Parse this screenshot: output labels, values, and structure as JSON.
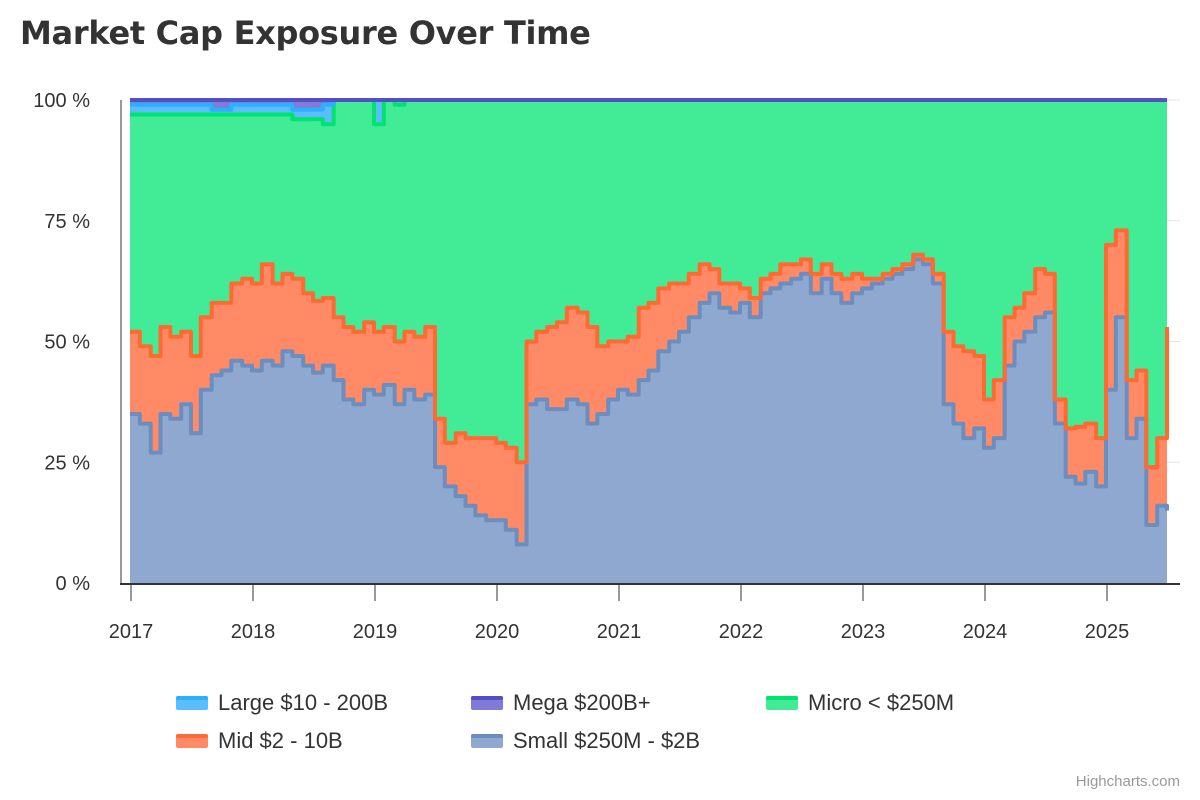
{
  "chart_data": {
    "type": "area",
    "stacking": "percent",
    "title": "Market Cap Exposure Over Time",
    "xlabel": "",
    "ylabel": "",
    "ylim": [
      0,
      100
    ],
    "y_ticks": [
      "0 %",
      "25 %",
      "50 %",
      "75 %",
      "100 %"
    ],
    "y_tick_values": [
      0,
      25,
      50,
      75,
      100
    ],
    "x_ticks": [
      "2017",
      "2018",
      "2019",
      "2020",
      "2021",
      "2022",
      "2023",
      "2024",
      "2025"
    ],
    "x_tick_values": [
      2017,
      2018,
      2019,
      2020,
      2021,
      2022,
      2023,
      2024,
      2025
    ],
    "xlim": [
      2017.0,
      2025.5
    ],
    "grid": true,
    "legend_position": "bottom",
    "x": [
      2017.0,
      2017.08,
      2017.17,
      2017.25,
      2017.33,
      2017.42,
      2017.5,
      2017.58,
      2017.67,
      2017.75,
      2017.83,
      2017.92,
      2018.0,
      2018.08,
      2018.17,
      2018.25,
      2018.33,
      2018.42,
      2018.5,
      2018.58,
      2018.67,
      2018.75,
      2018.83,
      2018.92,
      2019.0,
      2019.08,
      2019.17,
      2019.25,
      2019.33,
      2019.42,
      2019.5,
      2019.58,
      2019.67,
      2019.75,
      2019.83,
      2019.92,
      2020.0,
      2020.08,
      2020.17,
      2020.25,
      2020.33,
      2020.42,
      2020.5,
      2020.58,
      2020.67,
      2020.75,
      2020.83,
      2020.92,
      2021.0,
      2021.08,
      2021.17,
      2021.25,
      2021.33,
      2021.42,
      2021.5,
      2021.58,
      2021.67,
      2021.75,
      2021.83,
      2021.92,
      2022.0,
      2022.08,
      2022.17,
      2022.25,
      2022.33,
      2022.42,
      2022.5,
      2022.58,
      2022.67,
      2022.75,
      2022.83,
      2022.92,
      2023.0,
      2023.08,
      2023.17,
      2023.25,
      2023.33,
      2023.42,
      2023.5,
      2023.58,
      2023.67,
      2023.75,
      2023.83,
      2023.92,
      2024.0,
      2024.08,
      2024.17,
      2024.25,
      2024.33,
      2024.42,
      2024.5,
      2024.58,
      2024.67,
      2024.75,
      2024.83,
      2024.92,
      2025.0,
      2025.08,
      2025.17,
      2025.25,
      2025.33,
      2025.42,
      2025.5
    ],
    "series": [
      {
        "name": "Small $250M - $2B",
        "color": "#6c8ebf",
        "fill": "#8ea8cf",
        "values": [
          35,
          33,
          27,
          35,
          34,
          37,
          31,
          40,
          43,
          44,
          46,
          45,
          44,
          46,
          45,
          48,
          47,
          45,
          44,
          45,
          42,
          38,
          37,
          40,
          39,
          41,
          37,
          40,
          38,
          39,
          24,
          20,
          18,
          16,
          14,
          13,
          13,
          11,
          8,
          37,
          38,
          36,
          36,
          38,
          37,
          33,
          35,
          38,
          40,
          39,
          42,
          44,
          48,
          50,
          52,
          55,
          58,
          60,
          57,
          56,
          58,
          55,
          60,
          61,
          62,
          63,
          64,
          60,
          63,
          60,
          58,
          60,
          61,
          62,
          63,
          64,
          65,
          67,
          66,
          62,
          37,
          33,
          30,
          32,
          28,
          30,
          45,
          50,
          52,
          55,
          56,
          33,
          22,
          21,
          23,
          20,
          40,
          55,
          30,
          34,
          12,
          16,
          15
        ]
      },
      {
        "name": "Mid $2 - 10B",
        "color": "#ff6a33",
        "fill": "#ff8a65",
        "values": [
          17,
          16,
          20,
          18,
          17,
          15,
          16,
          15,
          15,
          14,
          16,
          18,
          18,
          20,
          17,
          16,
          16,
          15,
          15,
          14,
          13,
          15,
          15,
          14,
          13,
          12,
          13,
          12,
          13,
          14,
          10,
          9,
          13,
          14,
          16,
          17,
          16,
          17,
          17,
          13,
          14,
          17,
          18,
          19,
          19,
          20,
          14,
          12,
          10,
          12,
          15,
          14,
          13,
          12,
          10,
          9,
          8,
          5,
          5,
          6,
          3,
          4,
          3,
          3,
          4,
          3,
          3,
          4,
          3,
          4,
          5,
          4,
          2,
          1,
          1,
          1,
          1,
          1,
          1,
          2,
          15,
          16,
          18,
          15,
          10,
          12,
          10,
          7,
          8,
          10,
          8,
          5,
          10,
          12,
          10,
          10,
          30,
          18,
          12,
          10,
          12,
          14,
          38
        ]
      },
      {
        "name": "Micro < $250M",
        "color": "#00e36f",
        "fill": "#42eb95",
        "values": [
          45,
          48,
          50,
          44,
          46,
          45,
          50,
          42,
          39,
          39,
          35,
          34,
          35,
          31,
          35,
          33,
          33,
          36,
          38,
          36,
          45,
          47,
          48,
          46,
          43,
          47,
          49,
          48,
          49,
          47,
          66,
          71,
          69,
          70,
          70,
          70,
          71,
          72,
          75,
          50,
          48,
          47,
          46,
          43,
          44,
          47,
          51,
          50,
          50,
          49,
          43,
          42,
          39,
          38,
          38,
          36,
          34,
          35,
          38,
          38,
          39,
          41,
          37,
          36,
          34,
          34,
          33,
          36,
          34,
          36,
          37,
          36,
          37,
          37,
          36,
          35,
          34,
          32,
          33,
          36,
          48,
          51,
          52,
          53,
          62,
          58,
          45,
          43,
          40,
          35,
          36,
          62,
          68,
          69,
          67,
          70,
          30,
          27,
          58,
          56,
          76,
          70,
          47
        ]
      },
      {
        "name": "Large $10 - 200B",
        "color": "#2caffe",
        "fill": "#5cbdfd",
        "values": [
          2,
          2,
          2,
          2,
          2,
          2,
          2,
          2,
          1,
          1,
          2,
          2,
          2,
          2,
          2,
          2,
          2,
          2,
          2,
          4,
          0,
          0,
          0,
          0,
          5,
          0,
          1,
          0,
          0,
          0,
          0,
          0,
          0,
          0,
          0,
          0,
          0,
          0,
          0,
          0,
          0,
          0,
          0,
          0,
          0,
          0,
          0,
          0,
          0,
          0,
          0,
          0,
          0,
          0,
          0,
          0,
          0,
          0,
          0,
          0,
          0,
          0,
          0,
          0,
          0,
          0,
          0,
          0,
          0,
          0,
          0,
          0,
          0,
          0,
          0,
          0,
          0,
          0,
          0,
          0,
          0,
          0,
          0,
          0,
          0,
          0,
          0,
          0,
          0,
          0,
          0,
          0,
          0,
          0,
          0,
          0,
          0,
          0,
          0,
          0,
          0,
          0,
          0
        ]
      },
      {
        "name": "Mega $200B+",
        "color": "#544fc5",
        "fill": "#7f7bd6",
        "values": [
          1,
          1,
          1,
          1,
          1,
          1,
          1,
          1,
          2,
          2,
          1,
          1,
          1,
          1,
          1,
          1,
          2,
          2,
          2,
          1,
          0,
          0,
          0,
          0,
          0,
          0,
          0,
          0,
          0,
          0,
          0,
          0,
          0,
          0,
          0,
          0,
          0,
          0,
          0,
          0,
          0,
          0,
          0,
          0,
          0,
          0,
          0,
          0,
          0,
          0,
          0,
          0,
          0,
          0,
          0,
          0,
          0,
          0,
          0,
          0,
          0,
          0,
          0,
          0,
          0,
          0,
          0,
          0,
          0,
          0,
          0,
          0,
          0,
          0,
          0,
          0,
          0,
          0,
          0,
          0,
          0,
          0,
          0,
          0,
          0,
          0,
          0,
          0,
          0,
          0,
          0,
          0,
          0,
          0,
          0,
          0,
          0,
          0,
          0,
          0,
          0,
          0,
          0
        ]
      }
    ],
    "legend": [
      {
        "name": "Large $10 - 200B",
        "color": "#2caffe",
        "fill": "#5cbdfd"
      },
      {
        "name": "Mega $200B+",
        "color": "#544fc5",
        "fill": "#7f7bd6"
      },
      {
        "name": "Micro < $250M",
        "color": "#00e36f",
        "fill": "#42eb95"
      },
      {
        "name": "Mid $2 - 10B",
        "color": "#ff6a33",
        "fill": "#ff8a65"
      },
      {
        "name": "Small $250M - $2B",
        "color": "#6c8ebf",
        "fill": "#8ea8cf"
      }
    ]
  },
  "credits": "Highcharts.com"
}
